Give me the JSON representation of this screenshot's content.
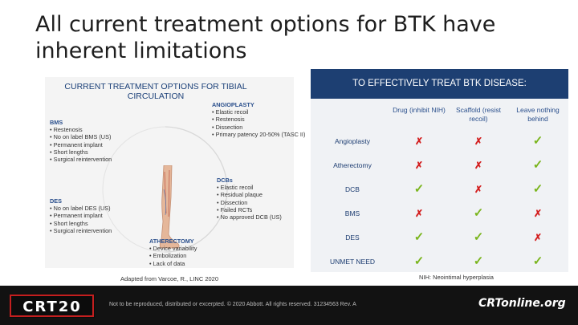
{
  "slide": {
    "title": "All current treatment options for BTK have inherent limitations"
  },
  "left": {
    "heading": "CURRENT TREATMENT OPTIONS FOR TIBIAL CIRCULATION",
    "angioplasty": {
      "title": "ANGIOPLASTY",
      "items": [
        "Elastic recoil",
        "Restenosis",
        "Dissection",
        "Primary patency 20-50% (TASC II)"
      ]
    },
    "bms": {
      "title": "BMS",
      "items": [
        "Restenosis",
        "No on label BMS (US)",
        "Permanent implant",
        "Short lengths",
        "Surgical reintervention"
      ]
    },
    "des": {
      "title": "DES",
      "items": [
        "No on label DES (US)",
        "Permanent implant",
        "Short lengths",
        "Surgical reintervention"
      ]
    },
    "dcb": {
      "title": "DCBs",
      "items": [
        "Elastic recoil",
        "Residual plaque",
        "Dissection",
        "Failed RCTs",
        "No approved DCB (US)"
      ]
    },
    "atherectomy": {
      "title": "ATHERECTOMY",
      "items": [
        "Device variability",
        "Embolization",
        "Lack of data"
      ]
    }
  },
  "right": {
    "header": "TO EFFECTIVELY TREAT BTK DISEASE:",
    "columns": [
      "Drug (inhibit NIH)",
      "Scaffold (resist recoil)",
      "Leave nothing behind"
    ],
    "rows": [
      {
        "label": "Angioplasty",
        "marks": [
          "no",
          "no",
          "yes"
        ]
      },
      {
        "label": "Atherectomy",
        "marks": [
          "no",
          "no",
          "yes"
        ]
      },
      {
        "label": "DCB",
        "marks": [
          "yes",
          "no",
          "yes"
        ]
      },
      {
        "label": "BMS",
        "marks": [
          "no",
          "yes",
          "no"
        ]
      },
      {
        "label": "DES",
        "marks": [
          "yes",
          "yes",
          "no"
        ]
      },
      {
        "label": "UNMET NEED",
        "marks": [
          "yes",
          "yes",
          "yes"
        ]
      }
    ],
    "footnote": "NIH: Neointimal hyperplasia"
  },
  "source": "Adapted from Varcoe, R., LINC 2020",
  "footer": {
    "logo_text": "CRT20",
    "note": "Not to be reproduced, distributed or excerpted.   © 2020 Abbott. All rights reserved. 31234563 Rev. A",
    "site": "CRTonline.org"
  },
  "colors": {
    "navy": "#1d3f72",
    "check": "#7ab51d",
    "cross": "#d31f1f"
  }
}
